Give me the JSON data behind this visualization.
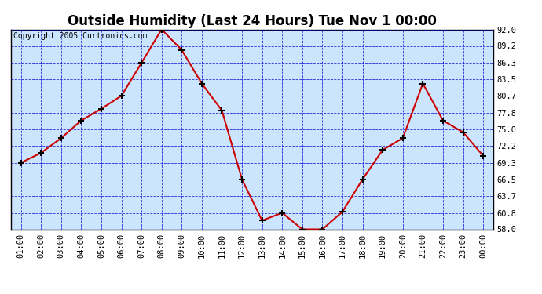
{
  "title": "Outside Humidity (Last 24 Hours) Tue Nov 1 00:00",
  "copyright": "Copyright 2005 Curtronics.com",
  "x_labels": [
    "01:00",
    "02:00",
    "03:00",
    "04:00",
    "05:00",
    "06:00",
    "07:00",
    "08:00",
    "09:00",
    "10:00",
    "11:00",
    "12:00",
    "13:00",
    "14:00",
    "15:00",
    "16:00",
    "17:00",
    "18:00",
    "19:00",
    "20:00",
    "21:00",
    "22:00",
    "23:00",
    "00:00"
  ],
  "y_values": [
    69.3,
    71.0,
    73.5,
    76.5,
    78.5,
    80.7,
    86.3,
    92.0,
    88.5,
    82.8,
    78.2,
    66.5,
    59.5,
    60.8,
    58.0,
    58.0,
    61.0,
    66.5,
    71.5,
    73.5,
    82.8,
    76.5,
    74.5,
    70.5
  ],
  "line_color": "#cc0000",
  "marker_color": "#000000",
  "bg_color": "#cce5ff",
  "outer_bg_color": "#ffffff",
  "grid_color": "#0000cc",
  "title_color": "#000000",
  "border_color": "#000000",
  "y_tick_labels": [
    "58.0",
    "60.8",
    "63.7",
    "66.5",
    "69.3",
    "72.2",
    "75.0",
    "77.8",
    "80.7",
    "83.5",
    "86.3",
    "89.2",
    "92.0"
  ],
  "ylim": [
    58.0,
    92.0
  ],
  "yticks": [
    58.0,
    60.8,
    63.7,
    66.5,
    69.3,
    72.2,
    75.0,
    77.8,
    80.7,
    83.5,
    86.3,
    89.2,
    92.0
  ],
  "title_fontsize": 12,
  "copyright_fontsize": 7,
  "tick_fontsize": 7.5
}
